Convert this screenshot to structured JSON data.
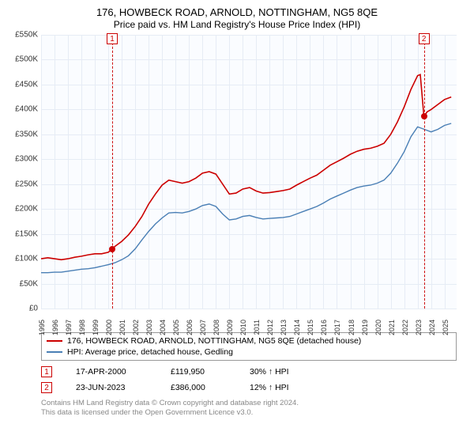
{
  "title": "176, HOWBECK ROAD, ARNOLD, NOTTINGHAM, NG5 8QE",
  "subtitle": "Price paid vs. HM Land Registry's House Price Index (HPI)",
  "chart": {
    "background_color": "#fafcff",
    "grid_color": "#e6ecf5",
    "ylim": [
      0,
      550000
    ],
    "ytick_step": 50000,
    "ylabels": [
      "£0",
      "£50K",
      "£100K",
      "£150K",
      "£200K",
      "£250K",
      "£300K",
      "£350K",
      "£400K",
      "£450K",
      "£500K",
      "£550K"
    ],
    "xlim": [
      1995,
      2025.9
    ],
    "xtick_years": [
      1995,
      1996,
      1997,
      1998,
      1999,
      2000,
      2001,
      2002,
      2003,
      2004,
      2005,
      2006,
      2007,
      2008,
      2009,
      2010,
      2011,
      2012,
      2013,
      2014,
      2015,
      2016,
      2017,
      2018,
      2019,
      2020,
      2021,
      2022,
      2023,
      2024,
      2025
    ],
    "series": [
      {
        "name": "price_paid",
        "color": "#cc0000",
        "width": 1.6,
        "label": "176, HOWBECK ROAD, ARNOLD, NOTTINGHAM, NG5 8QE (detached house)",
        "points": [
          [
            1995.0,
            100000
          ],
          [
            1995.5,
            102000
          ],
          [
            1996.0,
            100000
          ],
          [
            1996.5,
            98000
          ],
          [
            1997.0,
            100000
          ],
          [
            1997.5,
            103000
          ],
          [
            1998.0,
            105000
          ],
          [
            1998.5,
            108000
          ],
          [
            1999.0,
            110000
          ],
          [
            1999.5,
            110000
          ],
          [
            2000.0,
            113000
          ],
          [
            2000.3,
            119950
          ],
          [
            2000.5,
            125000
          ],
          [
            2001.0,
            135000
          ],
          [
            2001.5,
            148000
          ],
          [
            2002.0,
            165000
          ],
          [
            2002.5,
            185000
          ],
          [
            2003.0,
            210000
          ],
          [
            2003.5,
            230000
          ],
          [
            2004.0,
            248000
          ],
          [
            2004.5,
            258000
          ],
          [
            2005.0,
            255000
          ],
          [
            2005.5,
            252000
          ],
          [
            2006.0,
            255000
          ],
          [
            2006.5,
            262000
          ],
          [
            2007.0,
            272000
          ],
          [
            2007.5,
            275000
          ],
          [
            2008.0,
            270000
          ],
          [
            2008.5,
            250000
          ],
          [
            2009.0,
            230000
          ],
          [
            2009.5,
            232000
          ],
          [
            2010.0,
            240000
          ],
          [
            2010.5,
            243000
          ],
          [
            2011.0,
            236000
          ],
          [
            2011.5,
            232000
          ],
          [
            2012.0,
            233000
          ],
          [
            2012.5,
            235000
          ],
          [
            2013.0,
            237000
          ],
          [
            2013.5,
            240000
          ],
          [
            2014.0,
            248000
          ],
          [
            2014.5,
            255000
          ],
          [
            2015.0,
            262000
          ],
          [
            2015.5,
            268000
          ],
          [
            2016.0,
            278000
          ],
          [
            2016.5,
            288000
          ],
          [
            2017.0,
            295000
          ],
          [
            2017.5,
            302000
          ],
          [
            2018.0,
            310000
          ],
          [
            2018.5,
            316000
          ],
          [
            2019.0,
            320000
          ],
          [
            2019.5,
            322000
          ],
          [
            2020.0,
            326000
          ],
          [
            2020.5,
            332000
          ],
          [
            2021.0,
            350000
          ],
          [
            2021.5,
            375000
          ],
          [
            2022.0,
            405000
          ],
          [
            2022.5,
            440000
          ],
          [
            2023.0,
            468000
          ],
          [
            2023.2,
            470000
          ],
          [
            2023.47,
            386000
          ],
          [
            2023.7,
            395000
          ],
          [
            2024.0,
            400000
          ],
          [
            2024.5,
            410000
          ],
          [
            2025.0,
            420000
          ],
          [
            2025.5,
            425000
          ]
        ]
      },
      {
        "name": "hpi",
        "color": "#4a7fb5",
        "width": 1.4,
        "label": "HPI: Average price, detached house, Gedling",
        "points": [
          [
            1995.0,
            72000
          ],
          [
            1995.5,
            72000
          ],
          [
            1996.0,
            73000
          ],
          [
            1996.5,
            73000
          ],
          [
            1997.0,
            75000
          ],
          [
            1997.5,
            77000
          ],
          [
            1998.0,
            79000
          ],
          [
            1998.5,
            80000
          ],
          [
            1999.0,
            82000
          ],
          [
            1999.5,
            85000
          ],
          [
            2000.0,
            88000
          ],
          [
            2000.5,
            92000
          ],
          [
            2001.0,
            98000
          ],
          [
            2001.5,
            106000
          ],
          [
            2002.0,
            120000
          ],
          [
            2002.5,
            138000
          ],
          [
            2003.0,
            155000
          ],
          [
            2003.5,
            170000
          ],
          [
            2004.0,
            182000
          ],
          [
            2004.5,
            192000
          ],
          [
            2005.0,
            193000
          ],
          [
            2005.5,
            192000
          ],
          [
            2006.0,
            195000
          ],
          [
            2006.5,
            200000
          ],
          [
            2007.0,
            207000
          ],
          [
            2007.5,
            210000
          ],
          [
            2008.0,
            205000
          ],
          [
            2008.5,
            190000
          ],
          [
            2009.0,
            178000
          ],
          [
            2009.5,
            180000
          ],
          [
            2010.0,
            185000
          ],
          [
            2010.5,
            187000
          ],
          [
            2011.0,
            183000
          ],
          [
            2011.5,
            180000
          ],
          [
            2012.0,
            181000
          ],
          [
            2012.5,
            182000
          ],
          [
            2013.0,
            183000
          ],
          [
            2013.5,
            185000
          ],
          [
            2014.0,
            190000
          ],
          [
            2014.5,
            195000
          ],
          [
            2015.0,
            200000
          ],
          [
            2015.5,
            205000
          ],
          [
            2016.0,
            212000
          ],
          [
            2016.5,
            220000
          ],
          [
            2017.0,
            226000
          ],
          [
            2017.5,
            232000
          ],
          [
            2018.0,
            238000
          ],
          [
            2018.5,
            243000
          ],
          [
            2019.0,
            246000
          ],
          [
            2019.5,
            248000
          ],
          [
            2020.0,
            252000
          ],
          [
            2020.5,
            258000
          ],
          [
            2021.0,
            272000
          ],
          [
            2021.5,
            292000
          ],
          [
            2022.0,
            315000
          ],
          [
            2022.5,
            345000
          ],
          [
            2023.0,
            365000
          ],
          [
            2023.5,
            360000
          ],
          [
            2024.0,
            355000
          ],
          [
            2024.5,
            360000
          ],
          [
            2025.0,
            368000
          ],
          [
            2025.5,
            372000
          ]
        ]
      }
    ],
    "markers": [
      {
        "n": "1",
        "year": 2000.29,
        "price": 119950,
        "color": "#cc0000"
      },
      {
        "n": "2",
        "year": 2023.47,
        "price": 386000,
        "color": "#cc0000"
      }
    ],
    "marker_dash_color": "#cc0000"
  },
  "legend": [
    {
      "color": "#cc0000",
      "text": "176, HOWBECK ROAD, ARNOLD, NOTTINGHAM, NG5 8QE (detached house)"
    },
    {
      "color": "#4a7fb5",
      "text": "HPI: Average price, detached house, Gedling"
    }
  ],
  "events": [
    {
      "n": "1",
      "color": "#cc0000",
      "date": "17-APR-2000",
      "price": "£119,950",
      "delta": "30% ↑ HPI"
    },
    {
      "n": "2",
      "color": "#cc0000",
      "date": "23-JUN-2023",
      "price": "£386,000",
      "delta": "12% ↑ HPI"
    }
  ],
  "footer": {
    "line1": "Contains HM Land Registry data © Crown copyright and database right 2024.",
    "line2": "This data is licensed under the Open Government Licence v3.0."
  }
}
